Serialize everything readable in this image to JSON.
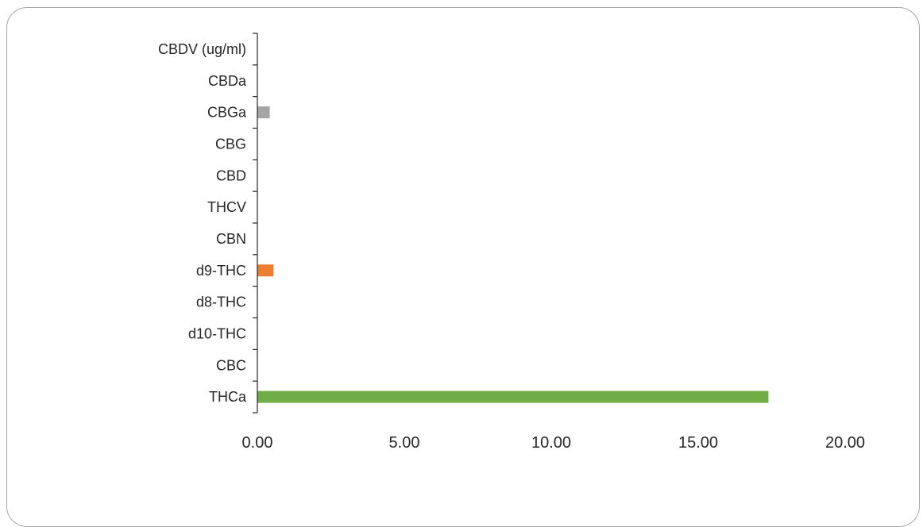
{
  "chart_data": {
    "type": "bar",
    "orientation": "horizontal",
    "title": "",
    "xlabel": "",
    "ylabel": "",
    "categories": [
      "THCa",
      "CBC",
      "d10-THC",
      "d8-THC",
      "d9-THC",
      "CBN",
      "THCV",
      "CBD",
      "CBG",
      "CBGa",
      "CBDa",
      "CBDV (ug/ml)"
    ],
    "values": [
      17.39,
      0,
      0,
      0,
      0.55,
      0,
      0,
      0,
      0,
      0.42,
      0,
      0
    ],
    "bar_colors": [
      "#70ad47",
      "#4472c4",
      "#4472c4",
      "#4472c4",
      "#ed7d31",
      "#4472c4",
      "#4472c4",
      "#4472c4",
      "#4472c4",
      "#a5a5a5",
      "#4472c4",
      "#4472c4"
    ],
    "xlim": [
      0,
      20
    ],
    "xticks": [
      "0.00",
      "5.00",
      "10.00",
      "15.00",
      "20.00"
    ],
    "xtick_values": [
      0,
      5,
      10,
      15,
      20
    ],
    "grid": false,
    "legend": "none"
  }
}
